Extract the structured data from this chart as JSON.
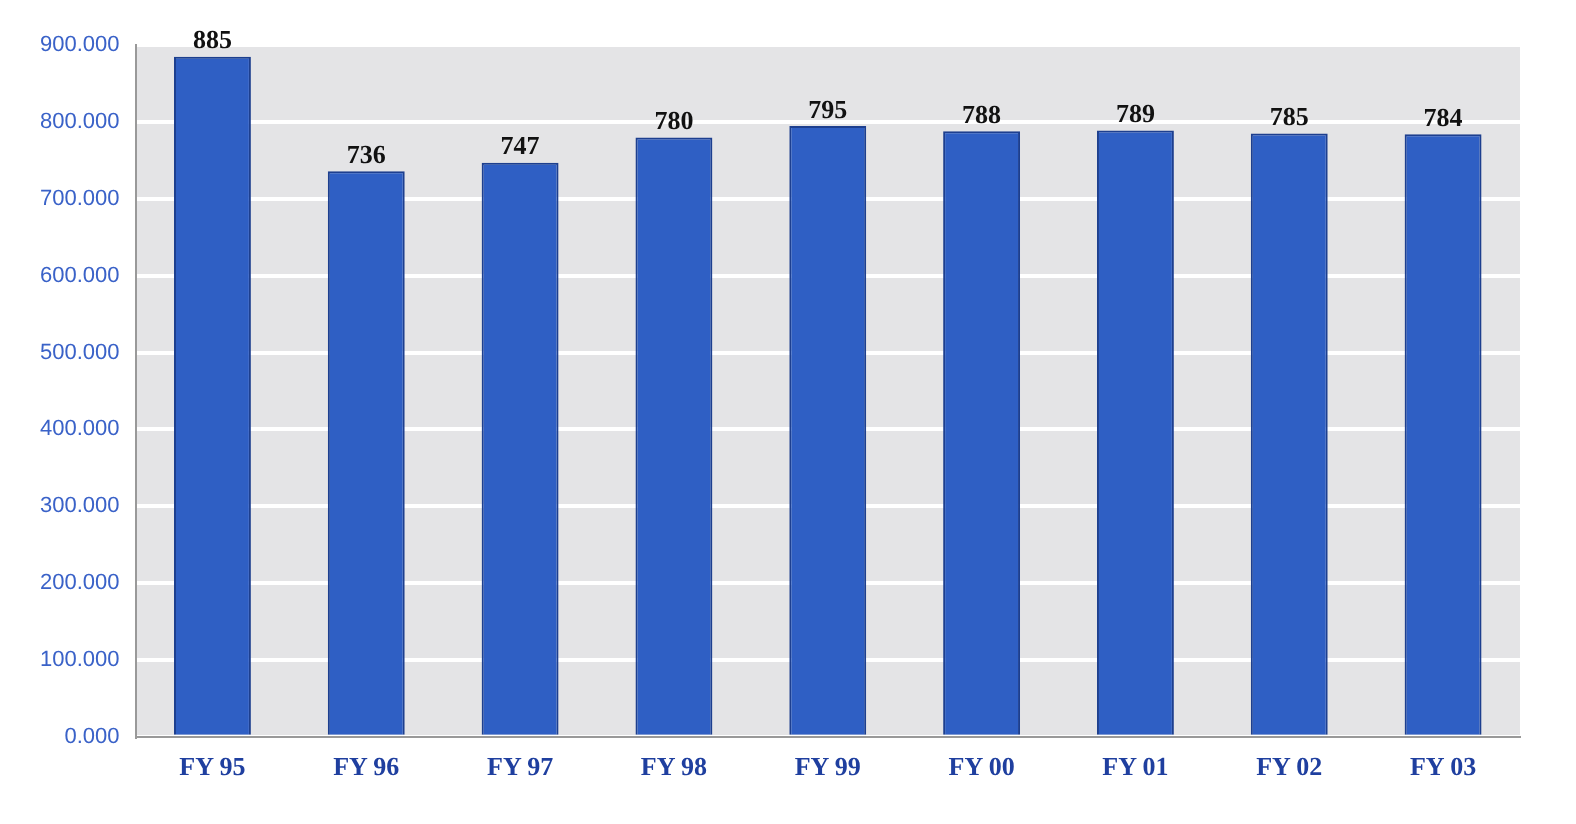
{
  "chart_data": {
    "type": "bar",
    "categories": [
      "FY 95",
      "FY 96",
      "FY 97",
      "FY 98",
      "FY 99",
      "FY 00",
      "FY 01",
      "FY 02",
      "FY 03"
    ],
    "values": [
      885,
      736,
      747,
      780,
      795,
      788,
      789,
      785,
      784
    ],
    "color": "#2f5fc4",
    "ylim": [
      0,
      900
    ],
    "yticks": [
      {
        "value": 0,
        "label": "0.000"
      },
      {
        "value": 100,
        "label": "100.000"
      },
      {
        "value": 200,
        "label": "200.000"
      },
      {
        "value": 300,
        "label": "300.000"
      },
      {
        "value": 400,
        "label": "400.000"
      },
      {
        "value": 500,
        "label": "500.000"
      },
      {
        "value": 600,
        "label": "600.000"
      },
      {
        "value": 700,
        "label": "700.000"
      },
      {
        "value": 800,
        "label": "800.000"
      },
      {
        "value": 900,
        "label": "900.000"
      }
    ],
    "grid": "y",
    "data_labels": true
  }
}
